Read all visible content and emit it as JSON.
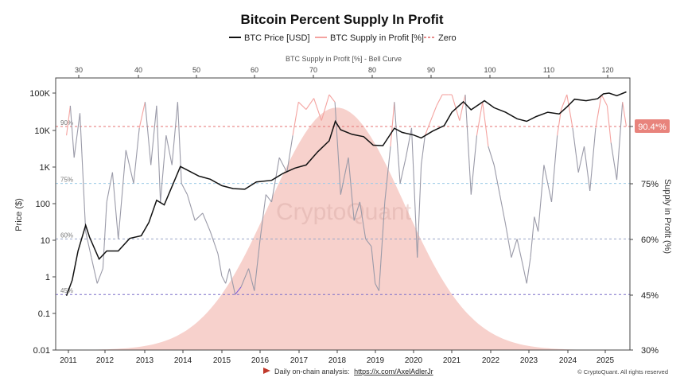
{
  "chart_data": {
    "type": "line",
    "title": "Bitcoin Percent Supply In Profit",
    "legend": {
      "placement": "top-center",
      "items": [
        {
          "label": "BTC Price [USD]",
          "color": "#111111",
          "style": "solid"
        },
        {
          "label": "BTC Supply in Profit [%]",
          "color": "#f4a3a0",
          "style": "solid"
        },
        {
          "label": "Zero",
          "color": "#e06666",
          "style": "dashed"
        }
      ]
    },
    "top_axis": {
      "label": "BTC Supply in Profit [%] - Bell Curve",
      "ticks": [
        "30",
        "40",
        "50",
        "60",
        "70",
        "80",
        "90",
        "100",
        "110",
        "120"
      ]
    },
    "left_axis": {
      "label": "Price ($)",
      "scale": "log",
      "ylim": [
        0.01,
        100000
      ],
      "ticks": [
        "0.01",
        "0.1",
        "1",
        "10",
        "100",
        "1K",
        "10K",
        "100K"
      ]
    },
    "right_axis": {
      "label": "Supply in Profit (%)",
      "ylim": [
        30,
        100
      ],
      "ticks": [
        "30%",
        "45%",
        "60%",
        "75%",
        "90.4*%"
      ]
    },
    "x_axis": {
      "ticks": [
        "2011",
        "2012",
        "2013",
        "2014",
        "2015",
        "2016",
        "2017",
        "2018",
        "2019",
        "2020",
        "2021",
        "2022",
        "2023",
        "2024",
        "2025"
      ],
      "xlim": [
        2010.85,
        2025.6
      ]
    },
    "reference_lines": [
      {
        "label": "90%",
        "value": 90.4,
        "color": "#e57373"
      },
      {
        "label": "75%",
        "value": 75,
        "color": "#9ecbe8"
      },
      {
        "label": "60%",
        "value": 60,
        "color": "#9aa6c8"
      },
      {
        "label": "45%",
        "value": 45,
        "color": "#7b6fc9"
      }
    ],
    "current_value_label": "90.4*%",
    "bell_curve": {
      "peak_x": 2018.0,
      "sigma_years": 1.75,
      "min_pct": 30,
      "peak_pct": 95.5,
      "color": "#f6c9c3"
    },
    "series": [
      {
        "name": "BTC Price [USD]",
        "color": "#111111",
        "x": [
          2010.95,
          2011.1,
          2011.25,
          2011.45,
          2011.55,
          2011.8,
          2012.0,
          2012.3,
          2012.6,
          2012.9,
          2013.1,
          2013.3,
          2013.5,
          2013.8,
          2013.92,
          2014.1,
          2014.4,
          2014.7,
          2015.0,
          2015.3,
          2015.6,
          2015.9,
          2016.3,
          2016.6,
          2016.9,
          2017.2,
          2017.5,
          2017.8,
          2017.96,
          2018.1,
          2018.4,
          2018.7,
          2018.95,
          2019.2,
          2019.5,
          2019.7,
          2020.0,
          2020.2,
          2020.5,
          2020.8,
          2021.0,
          2021.3,
          2021.5,
          2021.85,
          2022.1,
          2022.4,
          2022.7,
          2022.95,
          2023.2,
          2023.5,
          2023.8,
          2024.0,
          2024.2,
          2024.5,
          2024.8,
          2024.95,
          2025.1,
          2025.3,
          2025.55
        ],
        "values": [
          0.3,
          0.8,
          5,
          25,
          12,
          3,
          5,
          5,
          11,
          13,
          30,
          120,
          90,
          500,
          1000,
          800,
          550,
          450,
          300,
          250,
          240,
          380,
          420,
          650,
          900,
          1100,
          2500,
          5000,
          17000,
          10000,
          7500,
          6500,
          3800,
          3700,
          11000,
          8500,
          7200,
          6000,
          9200,
          13000,
          30000,
          58000,
          35000,
          62000,
          40000,
          30000,
          20000,
          17000,
          23000,
          30000,
          27000,
          42000,
          68000,
          62000,
          70000,
          95000,
          100000,
          85000,
          108000
        ]
      },
      {
        "name": "BTC Supply in Profit [%]",
        "x": [
          2010.95,
          2011.05,
          2011.15,
          2011.3,
          2011.45,
          2011.6,
          2011.75,
          2011.9,
          2012.0,
          2012.15,
          2012.3,
          2012.5,
          2012.7,
          2012.85,
          2013.0,
          2013.15,
          2013.3,
          2013.4,
          2013.55,
          2013.7,
          2013.85,
          2013.95,
          2014.1,
          2014.3,
          2014.5,
          2014.7,
          2014.9,
          2015.0,
          2015.1,
          2015.2,
          2015.35,
          2015.5,
          2015.7,
          2015.85,
          2016.0,
          2016.15,
          2016.3,
          2016.5,
          2016.7,
          2016.85,
          2017.0,
          2017.2,
          2017.4,
          2017.6,
          2017.8,
          2017.95,
          2018.1,
          2018.3,
          2018.45,
          2018.6,
          2018.75,
          2018.9,
          2019.0,
          2019.1,
          2019.25,
          2019.4,
          2019.5,
          2019.65,
          2019.8,
          2019.95,
          2020.1,
          2020.2,
          2020.3,
          2020.45,
          2020.6,
          2020.75,
          2020.9,
          2021.0,
          2021.2,
          2021.35,
          2021.5,
          2021.65,
          2021.8,
          2021.95,
          2022.1,
          2022.25,
          2022.4,
          2022.55,
          2022.7,
          2022.85,
          2022.95,
          2023.05,
          2023.15,
          2023.25,
          2023.4,
          2023.6,
          2023.75,
          2023.85,
          2024.0,
          2024.15,
          2024.3,
          2024.45,
          2024.6,
          2024.75,
          2024.9,
          2025.05,
          2025.15,
          2025.3,
          2025.45,
          2025.55
        ],
        "values": [
          88,
          96,
          82,
          94,
          62,
          55,
          48,
          52,
          70,
          78,
          60,
          84,
          75,
          90,
          97,
          80,
          96,
          70,
          88,
          80,
          97,
          75,
          72,
          65,
          67,
          62,
          56,
          50,
          48,
          52,
          45,
          47,
          52,
          46,
          60,
          72,
          70,
          82,
          78,
          88,
          97,
          95,
          98,
          92,
          99,
          97,
          72,
          82,
          65,
          70,
          60,
          58,
          48,
          46,
          70,
          85,
          97,
          75,
          82,
          90,
          55,
          80,
          88,
          92,
          96,
          99,
          99,
          99,
          92,
          99,
          72,
          88,
          97,
          85,
          80,
          72,
          64,
          55,
          60,
          53,
          48,
          55,
          66,
          62,
          80,
          70,
          88,
          95,
          99,
          90,
          78,
          85,
          73,
          90,
          99,
          96,
          86,
          76,
          97,
          90.4
        ]
      }
    ]
  },
  "watermark": "CryptoQuant",
  "footer": {
    "arrow_color": "#c0392b",
    "prefix": "Daily on-chain analysis:",
    "link": "https://x.com/AxelAdlerJr",
    "copyright": "© CryptoQuant. All rights reserved"
  }
}
